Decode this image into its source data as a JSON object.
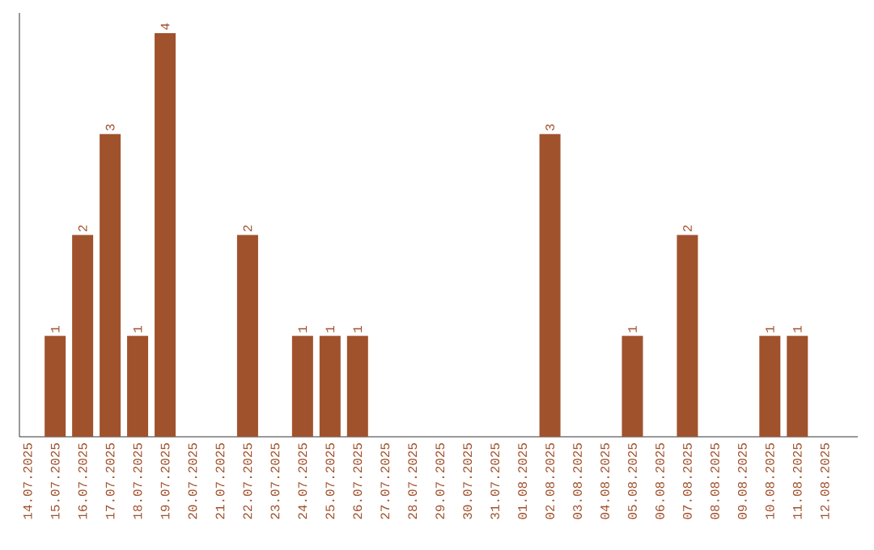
{
  "chart_data": {
    "type": "bar",
    "categories": [
      "14.07.2025",
      "15.07.2025",
      "16.07.2025",
      "17.07.2025",
      "18.07.2025",
      "19.07.2025",
      "20.07.2025",
      "21.07.2025",
      "22.07.2025",
      "23.07.2025",
      "24.07.2025",
      "25.07.2025",
      "26.07.2025",
      "27.07.2025",
      "28.07.2025",
      "29.07.2025",
      "30.07.2025",
      "31.07.2025",
      "01.08.2025",
      "02.08.2025",
      "03.08.2025",
      "04.08.2025",
      "05.08.2025",
      "06.08.2025",
      "07.08.2025",
      "08.08.2025",
      "09.08.2025",
      "10.08.2025",
      "11.08.2025",
      "12.08.2025"
    ],
    "values": [
      null,
      1,
      2,
      3,
      1,
      4,
      null,
      null,
      2,
      null,
      1,
      1,
      1,
      null,
      null,
      null,
      null,
      null,
      null,
      3,
      null,
      null,
      1,
      null,
      2,
      null,
      null,
      1,
      1,
      null
    ],
    "color": "#a0522d",
    "data_labels": true
  }
}
